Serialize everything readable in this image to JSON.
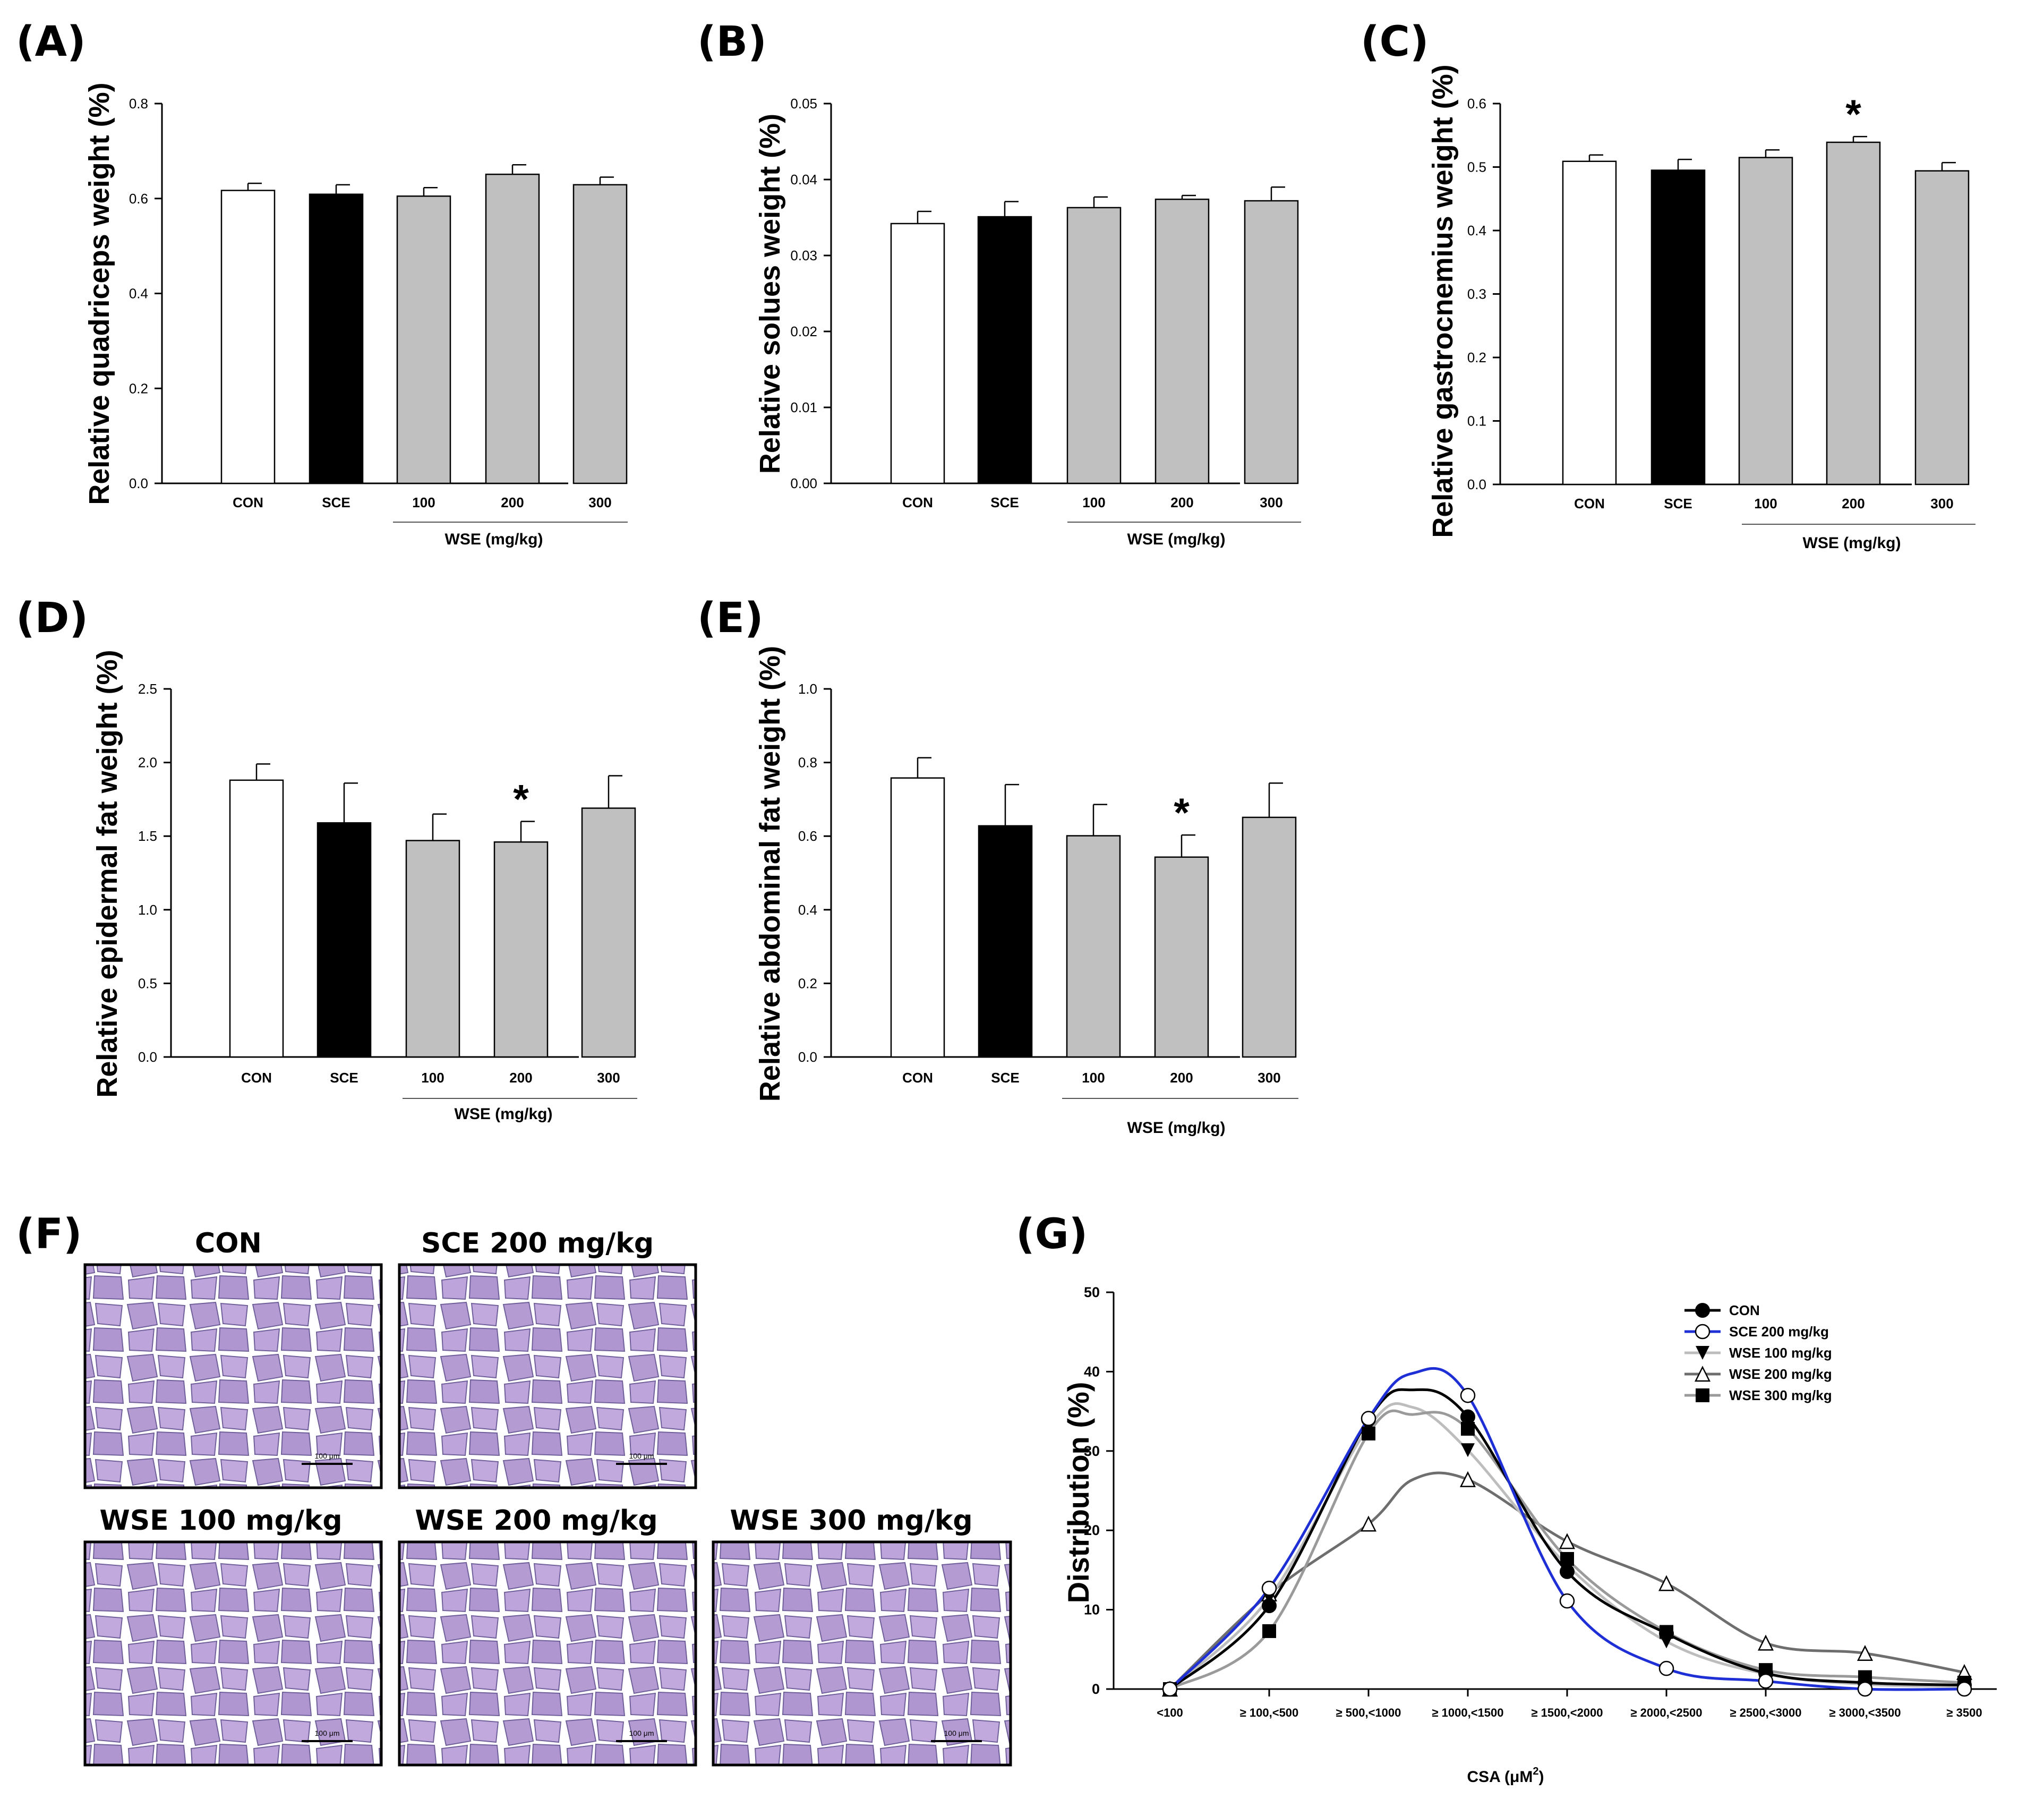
{
  "colors": {
    "con": "#ffffff",
    "sce": "#000000",
    "wse": "#c0c0c0",
    "axis": "#000000",
    "tissue_bg": "#c7b6dc",
    "tissue_fiber": "#b49bd2",
    "tissue_edge": "#6f5f9a"
  },
  "histology": {
    "letter": "(F)",
    "panels": [
      {
        "label": "CON",
        "scale": "100 μm"
      },
      {
        "label": "SCE 200 mg/kg",
        "scale": "100 μm"
      },
      {
        "label": "WSE 100 mg/kg",
        "scale": "100 μm"
      },
      {
        "label": "WSE 200 mg/kg",
        "scale": "100 μm"
      },
      {
        "label": "WSE 300 mg/kg",
        "scale": "100 μm"
      }
    ]
  },
  "chart_data": [
    {
      "id": "A",
      "letter": "(A)",
      "type": "bar",
      "categories": [
        "CON",
        "SCE",
        "100",
        "200",
        "300"
      ],
      "values": [
        0.617,
        0.609,
        0.605,
        0.651,
        0.629
      ],
      "errors": [
        0.015,
        0.02,
        0.018,
        0.02,
        0.016
      ],
      "fills": [
        "con",
        "sce",
        "wse",
        "wse",
        "wse"
      ],
      "ylabel": "Relative quadriceps weight (%)",
      "ylim": [
        0,
        0.8
      ],
      "yticks": [
        "0.0",
        "0.2",
        "0.4",
        "0.6",
        "0.8"
      ],
      "group_label": "WSE (mg/kg)",
      "significant": [
        false,
        false,
        false,
        false,
        false
      ]
    },
    {
      "id": "B",
      "letter": "(B)",
      "type": "bar",
      "categories": [
        "CON",
        "SCE",
        "100",
        "200",
        "300"
      ],
      "values": [
        0.0342,
        0.0351,
        0.0363,
        0.0374,
        0.0372
      ],
      "errors": [
        0.0016,
        0.002,
        0.0014,
        0.0005,
        0.0018
      ],
      "fills": [
        "con",
        "sce",
        "wse",
        "wse",
        "wse"
      ],
      "ylabel": "Relative solues weight (%)",
      "ylim": [
        0,
        0.05
      ],
      "yticks": [
        "0.00",
        "0.01",
        "0.02",
        "0.03",
        "0.04",
        "0.05"
      ],
      "group_label": "WSE (mg/kg)",
      "significant": [
        false,
        false,
        false,
        false,
        false
      ]
    },
    {
      "id": "C",
      "letter": "(C)",
      "type": "bar",
      "categories": [
        "CON",
        "SCE",
        "100",
        "200",
        "300"
      ],
      "values": [
        0.509,
        0.495,
        0.515,
        0.539,
        0.494
      ],
      "errors": [
        0.01,
        0.017,
        0.012,
        0.009,
        0.013
      ],
      "fills": [
        "con",
        "sce",
        "wse",
        "wse",
        "wse"
      ],
      "ylabel": "Relative gastrocnemius weight (%)",
      "ylim": [
        0,
        0.6
      ],
      "yticks": [
        "0.0",
        "0.1",
        "0.2",
        "0.3",
        "0.4",
        "0.5",
        "0.6"
      ],
      "group_label": "WSE (mg/kg)",
      "significant": [
        false,
        false,
        false,
        true,
        false
      ],
      "sig_mark": "*"
    },
    {
      "id": "D",
      "letter": "(D)",
      "type": "bar",
      "categories": [
        "CON",
        "SCE",
        "100",
        "200",
        "300"
      ],
      "values": [
        1.88,
        1.59,
        1.47,
        1.46,
        1.69
      ],
      "errors": [
        0.11,
        0.27,
        0.18,
        0.14,
        0.22
      ],
      "fills": [
        "con",
        "sce",
        "wse",
        "wse",
        "wse"
      ],
      "ylabel": "Relative epidermal fat weight (%)",
      "ylim": [
        0,
        2.5
      ],
      "yticks": [
        "0.0",
        "0.5",
        "1.0",
        "1.5",
        "2.0",
        "2.5"
      ],
      "group_label": "WSE (mg/kg)",
      "significant": [
        false,
        false,
        false,
        true,
        false
      ],
      "sig_mark": "*"
    },
    {
      "id": "E",
      "letter": "(E)",
      "type": "bar",
      "categories": [
        "CON",
        "SCE",
        "100",
        "200",
        "300"
      ],
      "values": [
        0.758,
        0.628,
        0.601,
        0.543,
        0.651
      ],
      "errors": [
        0.055,
        0.112,
        0.085,
        0.06,
        0.093
      ],
      "fills": [
        "con",
        "sce",
        "wse",
        "wse",
        "wse"
      ],
      "ylabel": "Relative abdominal fat weight (%)",
      "ylim": [
        0,
        1.0
      ],
      "yticks": [
        "0.0",
        "0.2",
        "0.4",
        "0.6",
        "0.8",
        "1.0"
      ],
      "group_label": "WSE (mg/kg)",
      "significant": [
        false,
        false,
        false,
        true,
        false
      ],
      "sig_mark": "*"
    },
    {
      "id": "G",
      "letter": "(G)",
      "type": "line",
      "categories": [
        "<100",
        "≥ 100,<500",
        "≥ 500,<1000",
        "≥ 1000,<1500",
        "≥ 1500,<2000",
        "≥ 2000,<2500",
        "≥ 2500,<3000",
        "≥ 3000,<3500",
        "≥ 3500"
      ],
      "ylabel": "Distribution (%)",
      "xlabel_main": "CSA (μM",
      "xlabel_sup": "2",
      "xlabel_end": ")",
      "ylim": [
        0,
        50
      ],
      "yticks": [
        "0",
        "10",
        "20",
        "30",
        "40",
        "50"
      ],
      "legend_position": "top-right",
      "series": [
        {
          "name": "CON",
          "values": [
            0,
            10.5,
            34,
            34.3,
            14.8,
            7,
            2,
            0.8,
            0.5
          ],
          "color": "#000000",
          "marker": "circle-filled",
          "curve_peak": 37.7
        },
        {
          "name": "SCE 200 mg/kg",
          "values": [
            0,
            12.7,
            34.1,
            37,
            11.1,
            2.6,
            1,
            0,
            0
          ],
          "color": "#1f2fd6",
          "marker": "circle-open",
          "curve_peak": 39.8
        },
        {
          "name": "WSE 100 mg/kg",
          "values": [
            0,
            11.5,
            33,
            30.1,
            15.6,
            6,
            1.9,
            0.6,
            0.3
          ],
          "color": "#bdbdbd",
          "marker": "triangle-down",
          "curve_peak": 35.5
        },
        {
          "name": "WSE 200 mg/kg",
          "values": [
            0,
            12,
            20.8,
            26.4,
            18.6,
            13.3,
            5.8,
            4.5,
            2.1
          ],
          "color": "#6e6e6e",
          "marker": "triangle-open",
          "curve_peak": 26.4
        },
        {
          "name": "WSE 300 mg/kg",
          "values": [
            0,
            7.3,
            32.2,
            32.8,
            16.4,
            7.2,
            2.4,
            1.5,
            0.8
          ],
          "color": "#9a9a9a",
          "marker": "square-filled",
          "curve_peak": 34.6
        }
      ]
    }
  ]
}
